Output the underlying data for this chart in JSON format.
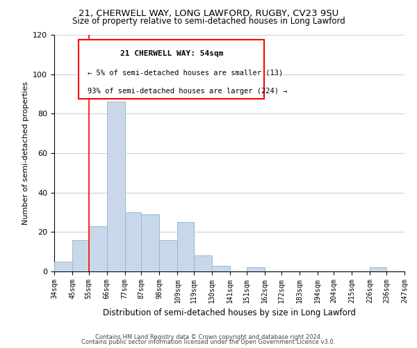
{
  "title_line1": "21, CHERWELL WAY, LONG LAWFORD, RUGBY, CV23 9SU",
  "title_line2": "Size of property relative to semi-detached houses in Long Lawford",
  "xlabel": "Distribution of semi-detached houses by size in Long Lawford",
  "ylabel": "Number of semi-detached properties",
  "bar_color": "#c8d8ea",
  "bar_edgecolor": "#9ab8cc",
  "bins": [
    34,
    45,
    55,
    66,
    77,
    87,
    98,
    109,
    119,
    130,
    141,
    151,
    162,
    172,
    183,
    194,
    204,
    215,
    226,
    236,
    247
  ],
  "counts": [
    5,
    16,
    23,
    86,
    30,
    29,
    16,
    25,
    8,
    3,
    0,
    2,
    0,
    0,
    0,
    0,
    0,
    0,
    2,
    0
  ],
  "tick_labels": [
    "34sqm",
    "45sqm",
    "55sqm",
    "66sqm",
    "77sqm",
    "87sqm",
    "98sqm",
    "109sqm",
    "119sqm",
    "130sqm",
    "141sqm",
    "151sqm",
    "162sqm",
    "172sqm",
    "183sqm",
    "194sqm",
    "204sqm",
    "215sqm",
    "226sqm",
    "236sqm",
    "247sqm"
  ],
  "ylim": [
    0,
    120
  ],
  "yticks": [
    0,
    20,
    40,
    60,
    80,
    100,
    120
  ],
  "property_line_x": 55,
  "property_size": "54sqm",
  "property_address": "21 CHERWELL WAY",
  "pct_smaller": 5,
  "n_smaller": 13,
  "pct_larger": 93,
  "n_larger": 224,
  "footer_line1": "Contains HM Land Registry data © Crown copyright and database right 2024.",
  "footer_line2": "Contains public sector information licensed under the Open Government Licence v3.0.",
  "background_color": "#ffffff",
  "grid_color": "#c8d4dc"
}
